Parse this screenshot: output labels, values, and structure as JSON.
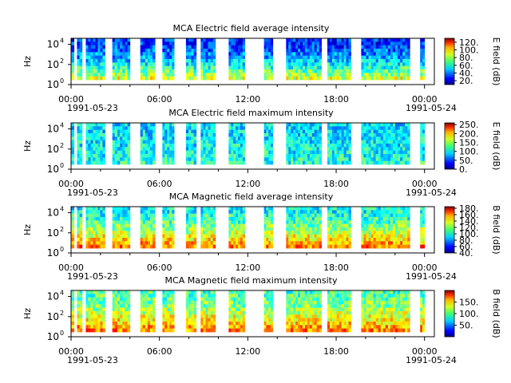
{
  "chart_data": [
    {
      "type": "heatmap",
      "title": "MCA  Electric field average intensity",
      "ylabel": "Hz",
      "y_scale": "log",
      "ylim": [
        1,
        40000
      ],
      "y_ticks": [
        {
          "value": 1,
          "base": "10",
          "exp": "0"
        },
        {
          "value": 100,
          "base": "10",
          "exp": "2"
        },
        {
          "value": 10000,
          "base": "10",
          "exp": "4"
        }
      ],
      "xlim": [
        "1991-05-23 00:00",
        "1991-05-24 00:40"
      ],
      "x_ticks": [
        "00:00",
        "06:00",
        "12:00",
        "18:00",
        "00:00"
      ],
      "x_tick_hours": [
        0,
        6,
        12,
        18,
        24
      ],
      "date_labels": [
        "1991-05-23",
        "1991-05-24"
      ],
      "colorbar": {
        "label": "E field (dB)",
        "range": [
          10,
          130
        ],
        "ticks": [
          "120.",
          "100.",
          "80.",
          "60.",
          "40.",
          "20."
        ],
        "tick_values": [
          120,
          100,
          80,
          60,
          40,
          20
        ]
      },
      "data_intervals_hours": [
        [
          0.0,
          0.2
        ],
        [
          0.4,
          0.75
        ],
        [
          1.0,
          2.3
        ],
        [
          2.8,
          4.0
        ],
        [
          4.7,
          5.7
        ],
        [
          6.2,
          7.0
        ],
        [
          7.8,
          8.5
        ],
        [
          8.8,
          9.8
        ],
        [
          10.7,
          11.8
        ],
        [
          13.1,
          13.7
        ],
        [
          14.6,
          17.0
        ],
        [
          17.4,
          19.0
        ],
        [
          19.7,
          23.0
        ],
        [
          23.7,
          24.0
        ]
      ],
      "intensity_profile": {
        "low_freq": 80,
        "mid_freq": 50,
        "high_freq": 30
      }
    },
    {
      "type": "heatmap",
      "title": "MCA  Electric field maximum intensity",
      "ylabel": "Hz",
      "y_scale": "log",
      "ylim": [
        1,
        40000
      ],
      "y_ticks": [
        {
          "value": 1,
          "base": "10",
          "exp": "0"
        },
        {
          "value": 100,
          "base": "10",
          "exp": "2"
        },
        {
          "value": 10000,
          "base": "10",
          "exp": "4"
        }
      ],
      "xlim": [
        "1991-05-23 00:00",
        "1991-05-24 00:40"
      ],
      "x_ticks": [
        "00:00",
        "06:00",
        "12:00",
        "18:00",
        "00:00"
      ],
      "x_tick_hours": [
        0,
        6,
        12,
        18,
        24
      ],
      "date_labels": [
        "1991-05-23",
        "1991-05-24"
      ],
      "colorbar": {
        "label": "E field (dB)",
        "range": [
          0,
          260
        ],
        "ticks": [
          "250.",
          "200.",
          "150.",
          "100.",
          "50.",
          "0."
        ],
        "tick_values": [
          250,
          200,
          150,
          100,
          50,
          0
        ]
      },
      "data_intervals_hours": [
        [
          0.0,
          0.2
        ],
        [
          0.4,
          0.75
        ],
        [
          1.0,
          2.3
        ],
        [
          2.8,
          4.0
        ],
        [
          4.7,
          5.7
        ],
        [
          6.2,
          7.0
        ],
        [
          7.8,
          8.5
        ],
        [
          8.8,
          9.8
        ],
        [
          10.7,
          11.8
        ],
        [
          13.1,
          13.7
        ],
        [
          14.6,
          17.0
        ],
        [
          17.4,
          19.0
        ],
        [
          19.7,
          23.0
        ],
        [
          23.7,
          24.0
        ]
      ],
      "intensity_profile": {
        "low_freq": 105,
        "mid_freq": 95,
        "high_freq": 90
      }
    },
    {
      "type": "heatmap",
      "title": "MCA  Magnetic field average intensity",
      "ylabel": "Hz",
      "y_scale": "log",
      "ylim": [
        1,
        40000
      ],
      "y_ticks": [
        {
          "value": 1,
          "base": "10",
          "exp": "0"
        },
        {
          "value": 100,
          "base": "10",
          "exp": "2"
        },
        {
          "value": 10000,
          "base": "10",
          "exp": "4"
        }
      ],
      "xlim": [
        "1991-05-23 00:00",
        "1991-05-24 00:40"
      ],
      "x_ticks": [
        "00:00",
        "06:00",
        "12:00",
        "18:00",
        "00:00"
      ],
      "x_tick_hours": [
        0,
        6,
        12,
        18,
        24
      ],
      "date_labels": [
        "1991-05-23",
        "1991-05-24"
      ],
      "colorbar": {
        "label": "B field (dB)",
        "range": [
          40,
          185
        ],
        "ticks": [
          "180.",
          "160.",
          "140.",
          "120.",
          "100.",
          "80.",
          "60.",
          "40."
        ],
        "tick_values": [
          180,
          160,
          140,
          120,
          100,
          80,
          60,
          40
        ]
      },
      "data_intervals_hours": [
        [
          0.0,
          0.2
        ],
        [
          0.4,
          0.75
        ],
        [
          1.0,
          2.3
        ],
        [
          2.8,
          4.0
        ],
        [
          4.7,
          5.7
        ],
        [
          6.2,
          7.0
        ],
        [
          7.8,
          8.5
        ],
        [
          8.8,
          9.8
        ],
        [
          10.7,
          11.8
        ],
        [
          13.1,
          13.7
        ],
        [
          14.6,
          17.0
        ],
        [
          17.4,
          19.0
        ],
        [
          19.7,
          23.0
        ],
        [
          23.7,
          24.0
        ]
      ],
      "intensity_profile": {
        "low_freq": 150,
        "mid_freq": 125,
        "high_freq": 95
      }
    },
    {
      "type": "heatmap",
      "title": "MCA  Magnetic field maximum intensity",
      "ylabel": "Hz",
      "y_scale": "log",
      "ylim": [
        1,
        40000
      ],
      "y_ticks": [
        {
          "value": 1,
          "base": "10",
          "exp": "0"
        },
        {
          "value": 100,
          "base": "10",
          "exp": "2"
        },
        {
          "value": 10000,
          "base": "10",
          "exp": "4"
        }
      ],
      "xlim": [
        "1991-05-23 00:00",
        "1991-05-24 00:40"
      ],
      "x_ticks": [
        "00:00",
        "06:00",
        "12:00",
        "18:00",
        "00:00"
      ],
      "x_tick_hours": [
        0,
        6,
        12,
        18,
        24
      ],
      "date_labels": [
        "1991-05-23",
        "1991-05-24"
      ],
      "colorbar": {
        "label": "B field (dB)",
        "range": [
          0,
          200
        ],
        "ticks": [
          "150.",
          "100.",
          "50."
        ],
        "tick_values": [
          150,
          100,
          50
        ]
      },
      "data_intervals_hours": [
        [
          0.0,
          0.2
        ],
        [
          0.4,
          0.75
        ],
        [
          1.0,
          2.3
        ],
        [
          2.8,
          4.0
        ],
        [
          4.7,
          5.7
        ],
        [
          6.2,
          7.0
        ],
        [
          7.8,
          8.5
        ],
        [
          8.8,
          9.8
        ],
        [
          10.7,
          11.8
        ],
        [
          13.1,
          13.7
        ],
        [
          14.6,
          17.0
        ],
        [
          17.4,
          19.0
        ],
        [
          19.7,
          23.0
        ],
        [
          23.7,
          24.0
        ]
      ],
      "intensity_profile": {
        "low_freq": 150,
        "mid_freq": 110,
        "high_freq": 90
      }
    }
  ]
}
